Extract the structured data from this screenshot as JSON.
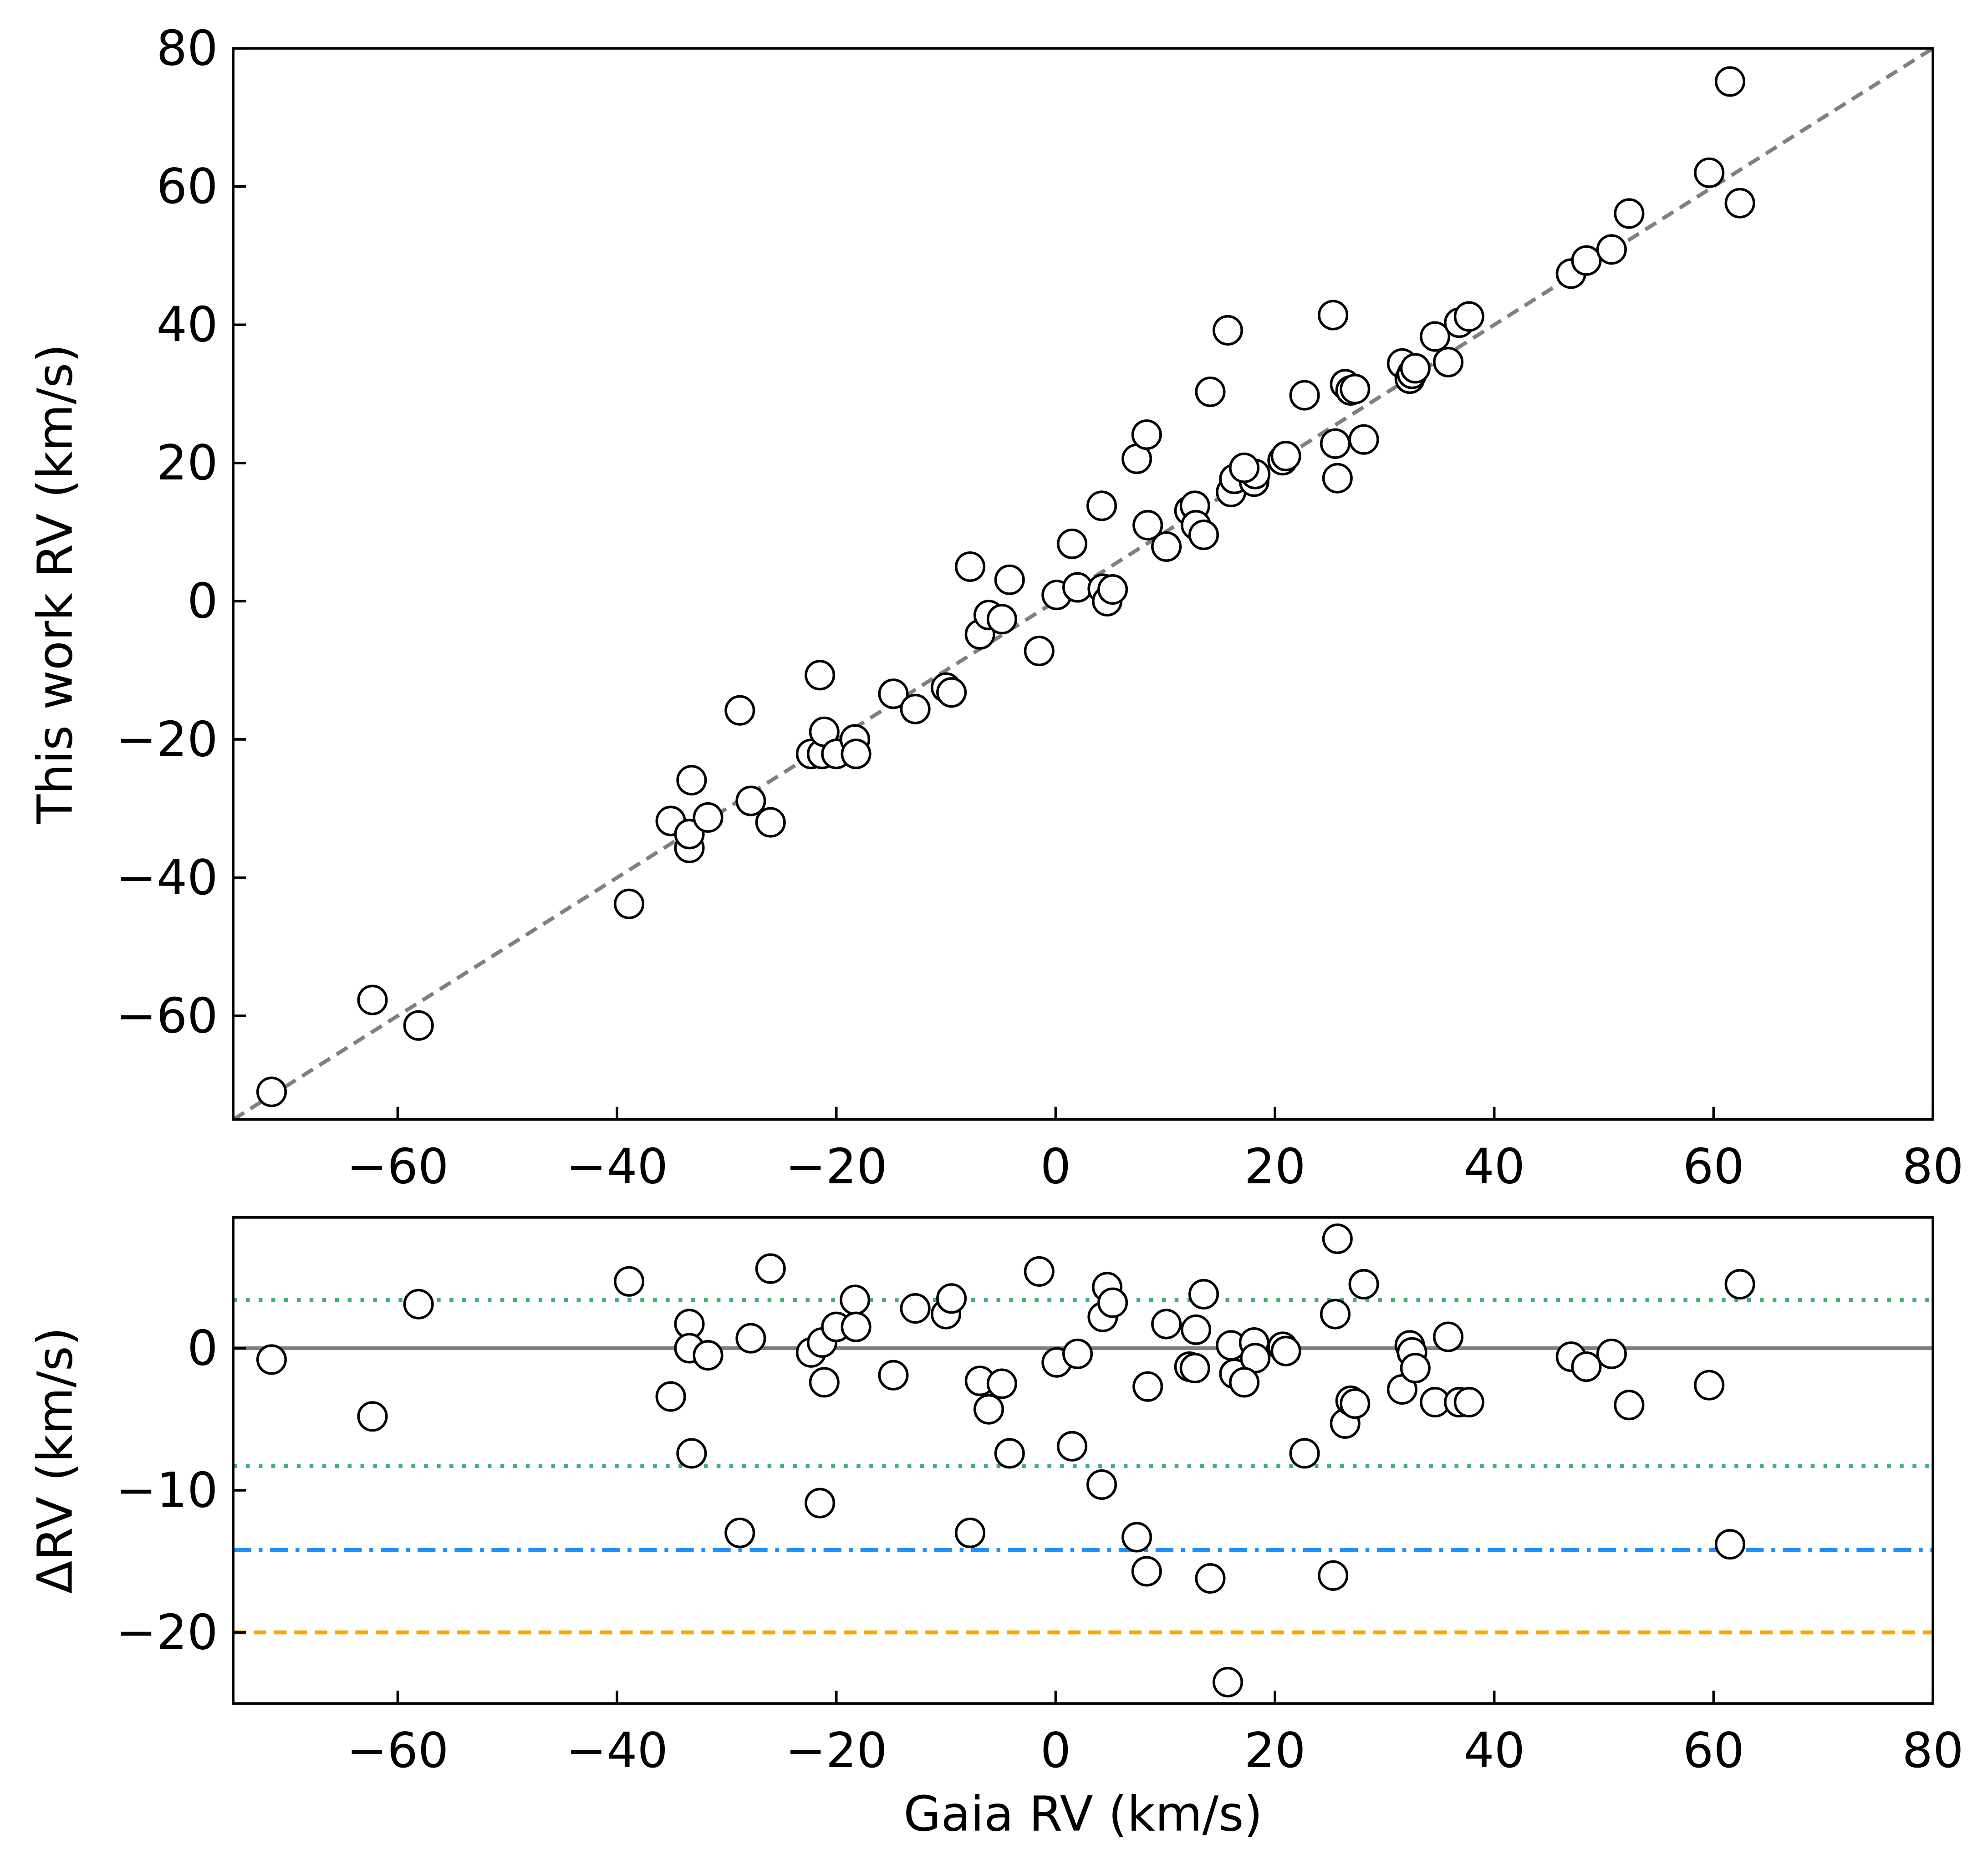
{
  "chart_data": [
    {
      "type": "scatter",
      "ylabel": "This work RV (km/s)",
      "x": [
        -71.5,
        -62.3,
        -58.1,
        -38.9,
        -35.1,
        -33.4,
        -33.4,
        -33.2,
        -31.7,
        -28.8,
        -27.8,
        -26.0,
        -22.3,
        -21.5,
        -21.3,
        -21.1,
        -20.0,
        -18.3,
        -18.2,
        -14.8,
        -12.8,
        -10.0,
        -9.5,
        -7.8,
        -6.9,
        -6.1,
        -4.9,
        -4.2,
        -1.5,
        0.1,
        1.5,
        2.0,
        4.2,
        4.3,
        4.7,
        5.2,
        7.4,
        8.3,
        8.4,
        10.1,
        12.2,
        12.7,
        12.8,
        13.5,
        14.1,
        15.7,
        16.0,
        16.3,
        18.1,
        18.2,
        17.2,
        20.7,
        21.0,
        22.7,
        25.3,
        25.5,
        25.7,
        26.4,
        26.9,
        27.3,
        28.1,
        31.6,
        32.3,
        32.5,
        32.8,
        34.6,
        35.8,
        36.8,
        37.7,
        47.0,
        48.4,
        50.7,
        52.3,
        59.6,
        61.5,
        62.4
      ],
      "series": [
        {
          "color": "#000000",
          "values": [
            -71.0,
            -57.7,
            -61.4,
            -43.8,
            -31.8,
            -35.7,
            -33.7,
            -25.9,
            -31.3,
            -15.8,
            -28.9,
            -32.0,
            -22.1,
            -10.7,
            -22.1,
            -18.9,
            -22.1,
            -20.0,
            -22.1,
            -13.4,
            -15.6,
            -12.5,
            -13.2,
            5.0,
            -4.8,
            -2.0,
            -2.6,
            3.1,
            -7.2,
            0.9,
            8.3,
            2.0,
            13.8,
            1.8,
            0.0,
            1.7,
            20.6,
            24.1,
            11.0,
            7.9,
            13.1,
            13.8,
            11.0,
            9.6,
            30.3,
            39.2,
            15.8,
            17.7,
            17.3,
            18.4,
            19.3,
            20.4,
            21.0,
            29.8,
            41.4,
            22.8,
            17.8,
            31.4,
            30.5,
            30.7,
            23.4,
            34.4,
            32.2,
            32.9,
            33.7,
            38.3,
            34.6,
            40.3,
            41.2,
            47.4,
            49.3,
            50.9,
            56.1,
            62.0,
            75.2,
            57.6
          ]
        }
      ],
      "reference_line": {
        "kind": "identity",
        "color": "#808080",
        "style": "dashed"
      },
      "xlim": [
        -75,
        80
      ],
      "ylim": [
        -75,
        80
      ],
      "xticks": [
        {
          "value": -60,
          "label": "−60"
        },
        {
          "value": -40,
          "label": "−40"
        },
        {
          "value": -20,
          "label": "−20"
        },
        0,
        20,
        40,
        60,
        80
      ],
      "yticks": [
        {
          "value": -60,
          "label": "−60"
        },
        {
          "value": -40,
          "label": "−40"
        },
        {
          "value": -20,
          "label": "−20"
        },
        0,
        20,
        40,
        60,
        80
      ]
    },
    {
      "type": "scatter",
      "xlabel": "Gaia RV (km/s)",
      "ylabel": "ΔRV (km/s)",
      "x": [
        -71.5,
        -62.3,
        -58.1,
        -38.9,
        -35.1,
        -33.4,
        -33.4,
        -33.2,
        -31.7,
        -28.8,
        -27.8,
        -26.0,
        -22.3,
        -21.5,
        -21.3,
        -21.1,
        -20.0,
        -18.3,
        -18.2,
        -14.8,
        -12.8,
        -10.0,
        -9.5,
        -7.8,
        -6.9,
        -6.1,
        -4.9,
        -4.2,
        -1.5,
        0.1,
        1.5,
        2.0,
        4.2,
        4.3,
        4.7,
        5.2,
        7.4,
        8.3,
        8.4,
        10.1,
        12.2,
        12.7,
        12.8,
        13.5,
        14.1,
        15.7,
        16.0,
        16.3,
        18.1,
        18.2,
        17.2,
        20.7,
        21.0,
        22.7,
        25.3,
        25.5,
        25.7,
        26.4,
        26.9,
        27.3,
        28.1,
        31.6,
        32.3,
        32.5,
        32.8,
        34.6,
        35.8,
        36.8,
        37.7,
        47.0,
        48.4,
        50.7,
        52.3,
        59.6,
        61.5,
        62.4
      ],
      "series": [
        {
          "color": "#000000",
          "values": [
            -0.8,
            -4.8,
            3.1,
            4.7,
            -3.4,
            1.7,
            0.0,
            -7.4,
            -0.5,
            -13.0,
            0.7,
            5.6,
            -0.3,
            -10.9,
            0.4,
            -2.4,
            1.5,
            3.4,
            1.5,
            -1.9,
            2.8,
            2.4,
            3.5,
            -13.0,
            -2.3,
            -4.3,
            -2.5,
            -7.4,
            5.4,
            -1.0,
            -6.9,
            -0.4,
            -9.6,
            2.2,
            4.3,
            3.2,
            -13.3,
            -15.7,
            -2.7,
            1.7,
            -1.3,
            -1.4,
            1.3,
            3.8,
            -16.2,
            -23.5,
            0.2,
            -1.8,
            0.4,
            -0.7,
            -2.4,
            0.1,
            -0.2,
            -7.4,
            -16.0,
            2.4,
            7.7,
            -5.3,
            -3.7,
            -3.9,
            4.5,
            -2.9,
            0.2,
            -0.3,
            -1.4,
            -3.8,
            0.8,
            -3.8,
            -3.8,
            -0.6,
            -1.3,
            -0.4,
            -4.0,
            -2.6,
            -13.8,
            4.5
          ]
        }
      ],
      "hlines": [
        {
          "value": 0,
          "color": "#808080",
          "style": "solid"
        },
        {
          "value": 3.4,
          "color": "#3cb371",
          "style": "dotted"
        },
        {
          "value": -8.3,
          "color": "#3cb371",
          "style": "dotted"
        },
        {
          "value": -14.2,
          "color": "#1e90ff",
          "style": "dashdot"
        },
        {
          "value": -20.0,
          "color": "#ffa500",
          "style": "dashed"
        }
      ],
      "xlim": [
        -75,
        80
      ],
      "ylim": [
        -25,
        9.2
      ],
      "xticks": [
        {
          "value": -60,
          "label": "−60"
        },
        {
          "value": -40,
          "label": "−40"
        },
        {
          "value": -20,
          "label": "−20"
        },
        0,
        20,
        40,
        60,
        80
      ],
      "yticks": [
        {
          "value": -20,
          "label": "−20"
        },
        {
          "value": -10,
          "label": "−10"
        },
        0
      ]
    }
  ]
}
